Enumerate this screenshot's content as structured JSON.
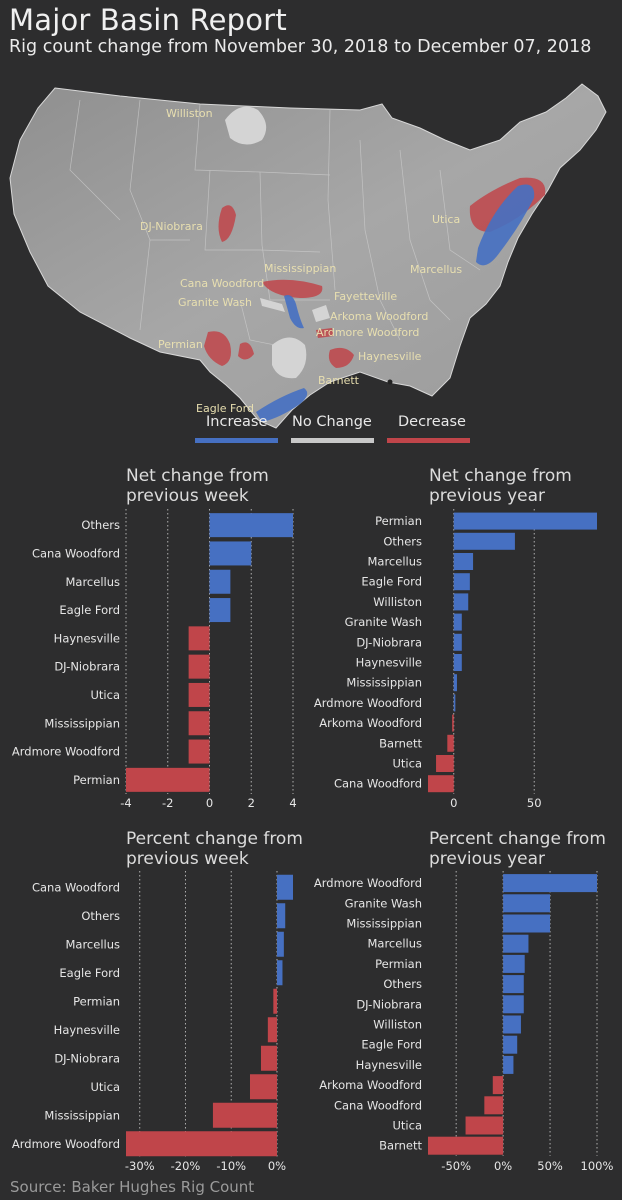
{
  "header": {
    "title": "Major Basin Report",
    "subtitle": "Rig count change from November 30, 2018 to December 07, 2018"
  },
  "map": {
    "labels": [
      "Williston",
      "DJ-Niobrara",
      "Utica",
      "Marcellus",
      "Mississippian",
      "Cana Woodford",
      "Granite Wash",
      "Fayetteville",
      "Arkoma Woodford",
      "Ardmore Woodford",
      "Permian",
      "Haynesville",
      "Barnett",
      "Eagle Ford"
    ],
    "legend": {
      "increase": "Increase",
      "no_change": "No Change",
      "decrease": "Decrease"
    }
  },
  "colors": {
    "increase": "#4670c2",
    "decrease": "#c0454a",
    "no_change": "#c8c8c8",
    "background": "#2d2d2e"
  },
  "source": "Source: Baker Hughes Rig Count",
  "chart_data": [
    {
      "id": "net-week",
      "type": "bar",
      "orientation": "horizontal",
      "title": "Net change from previous week",
      "title_lines": [
        "Net change from",
        "previous week"
      ],
      "categories": [
        "Others",
        "Cana Woodford",
        "Marcellus",
        "Eagle Ford",
        "Haynesville",
        "DJ-Niobrara",
        "Utica",
        "Mississippian",
        "Ardmore Woodford",
        "Permian"
      ],
      "values": [
        4,
        2,
        1,
        1,
        -1,
        -1,
        -1,
        -1,
        -1,
        -4
      ],
      "xlim": [
        -4,
        4
      ],
      "ticks": [
        -4,
        -2,
        0,
        2,
        4
      ],
      "tick_labels": [
        "-4",
        "-2",
        "0",
        "2",
        "4"
      ]
    },
    {
      "id": "net-year",
      "type": "bar",
      "orientation": "horizontal",
      "title": "Net change from previous year",
      "title_lines": [
        "Net change from",
        "previous year"
      ],
      "categories": [
        "Permian",
        "Others",
        "Marcellus",
        "Eagle Ford",
        "Williston",
        "Granite Wash",
        "DJ-Niobrara",
        "Haynesville",
        "Mississippian",
        "Ardmore Woodford",
        "Arkoma Woodford",
        "Barnett",
        "Utica",
        "Cana Woodford"
      ],
      "values": [
        89,
        38,
        12,
        10,
        9,
        5,
        5,
        5,
        2,
        1,
        -1,
        -4,
        -11,
        -16
      ],
      "xlim": [
        -16,
        89
      ],
      "ticks": [
        0,
        50
      ],
      "tick_labels": [
        "0",
        "50"
      ]
    },
    {
      "id": "pct-week",
      "type": "bar",
      "orientation": "horizontal",
      "title": "Percent change from previous week",
      "title_lines": [
        "Percent change from",
        "previous week"
      ],
      "categories": [
        "Cana Woodford",
        "Others",
        "Marcellus",
        "Eagle Ford",
        "Permian",
        "Haynesville",
        "DJ-Niobrara",
        "Utica",
        "Mississippian",
        "Ardmore Woodford"
      ],
      "values": [
        3.5,
        1.8,
        1.5,
        1.2,
        -0.8,
        -2,
        -3.5,
        -5.9,
        -14,
        -33
      ],
      "xlim": [
        -33,
        3.5
      ],
      "ticks": [
        -30,
        -20,
        -10,
        0
      ],
      "tick_labels": [
        "-30%",
        "-20%",
        "-10%",
        "0%"
      ]
    },
    {
      "id": "pct-year",
      "type": "bar",
      "orientation": "horizontal",
      "title": "Percent change from previous year",
      "title_lines": [
        "Percent change from",
        "previous year"
      ],
      "categories": [
        "Ardmore Woodford",
        "Granite Wash",
        "Mississippian",
        "Marcellus",
        "Permian",
        "Others",
        "DJ-Niobrara",
        "Williston",
        "Eagle Ford",
        "Haynesville",
        "Arkoma Woodford",
        "Cana Woodford",
        "Utica",
        "Barnett"
      ],
      "values": [
        100,
        50,
        50,
        27,
        23,
        22,
        22,
        19,
        15,
        11,
        -11,
        -20,
        -40,
        -80
      ],
      "xlim": [
        -80,
        100
      ],
      "ticks": [
        -50,
        0,
        50,
        100
      ],
      "tick_labels": [
        "-50%",
        "0%",
        "50%",
        "100%"
      ]
    }
  ]
}
